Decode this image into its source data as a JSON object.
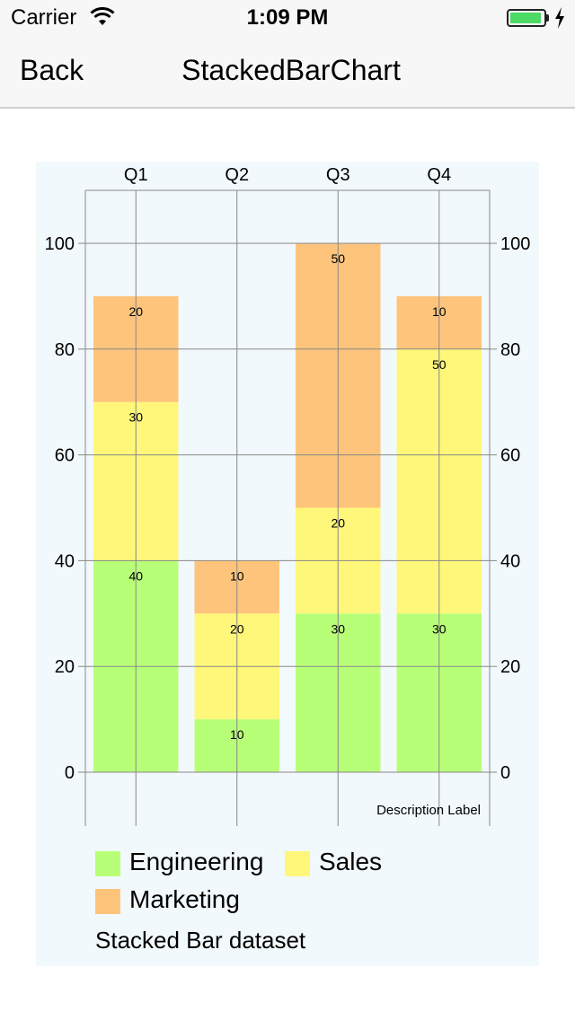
{
  "status_bar": {
    "carrier": "Carrier",
    "time": "1:09 PM",
    "battery_level": 0.95,
    "battery_color": "#4cd964"
  },
  "nav": {
    "back_label": "Back",
    "title": "StackedBarChart"
  },
  "chart_data": {
    "type": "bar",
    "stacked": true,
    "categories": [
      "Q1",
      "Q2",
      "Q3",
      "Q4"
    ],
    "series": [
      {
        "name": "Engineering",
        "values": [
          40,
          10,
          30,
          30
        ],
        "color": "#b8ff78"
      },
      {
        "name": "Sales",
        "values": [
          30,
          20,
          20,
          50
        ],
        "color": "#fff77a"
      },
      {
        "name": "Marketing",
        "values": [
          20,
          10,
          50,
          10
        ],
        "color": "#fec47c"
      }
    ],
    "ylim": [
      0,
      110
    ],
    "yticks": [
      0,
      20,
      40,
      60,
      80,
      100
    ],
    "grid": true,
    "x_axis_position": "top",
    "right_axis": true,
    "description": "Description Label",
    "dataset_label": "Stacked Bar dataset",
    "background": "#f2f9fc"
  }
}
